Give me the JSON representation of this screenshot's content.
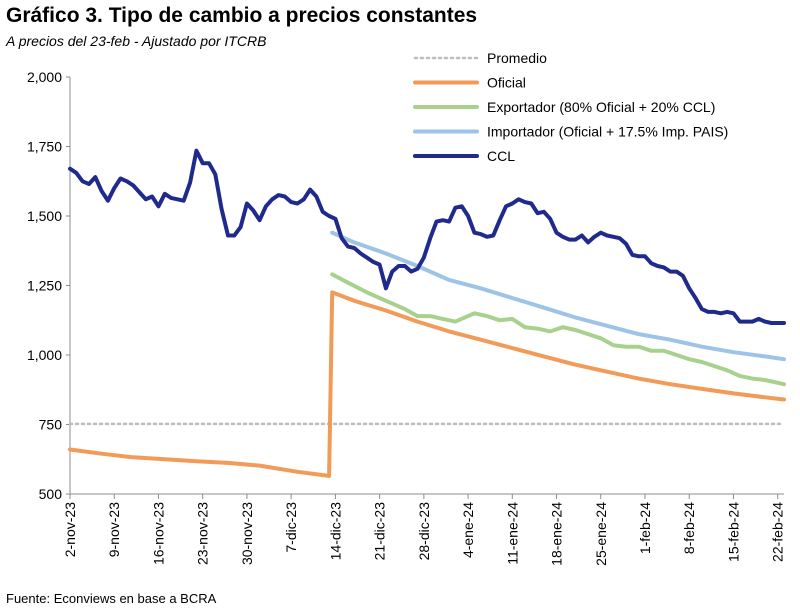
{
  "title": "Gráfico 3. Tipo de cambio a precios constantes",
  "subtitle": "A precios del 23-feb - Ajustado por ITCRB",
  "source": "Fuente: Econviews en base a BCRA",
  "chart_data": {
    "type": "line",
    "title": "Gráfico 3. Tipo de cambio a precios constantes",
    "subtitle": "A precios del 23-feb - Ajustado por ITCRB",
    "xlabel": "",
    "ylabel": "",
    "ylim": [
      500,
      2000
    ],
    "yticks": [
      500,
      750,
      1000,
      1250,
      1500,
      1750,
      2000
    ],
    "ytick_labels": [
      "500",
      "750",
      "1,000",
      "1,250",
      "1,500",
      "1,750",
      "2,000"
    ],
    "x_range_days": [
      0,
      113
    ],
    "xticks": [
      0,
      7,
      14,
      21,
      28,
      35,
      42,
      49,
      56,
      63,
      70,
      77,
      84,
      91,
      98,
      105,
      112
    ],
    "xtick_labels": [
      "2-nov-23",
      "9-nov-23",
      "16-nov-23",
      "23-nov-23",
      "30-nov-23",
      "7-dic-23",
      "14-dic-23",
      "21-dic-23",
      "28-dic-23",
      "4-ene-24",
      "11-ene-24",
      "18-ene-24",
      "25-ene-24",
      "1-feb-24",
      "8-feb-24",
      "15-feb-24",
      "22-feb-24"
    ],
    "x_unit": "days since 2-nov-23",
    "legend_position": "top-right",
    "grid": false,
    "series": [
      {
        "name": "Promedio",
        "color": "#bdbdbd",
        "style": "dotted",
        "x": [
          0,
          113
        ],
        "y": [
          752,
          752
        ]
      },
      {
        "name": "Oficial",
        "color": "#f29a57",
        "style": "solid",
        "x": [
          0,
          5,
          10,
          15,
          20,
          25,
          30,
          36,
          41,
          41.5,
          45,
          50,
          55,
          60,
          65,
          70,
          75,
          80,
          85,
          90,
          95,
          100,
          105,
          110,
          113
        ],
        "y": [
          660,
          645,
          632,
          625,
          618,
          612,
          602,
          580,
          565,
          1225,
          1195,
          1160,
          1120,
          1085,
          1055,
          1025,
          995,
          965,
          940,
          915,
          895,
          878,
          862,
          848,
          840
        ]
      },
      {
        "name": "Exportador (80% Oficial + 20% CCL)",
        "color": "#a9d18e",
        "style": "solid",
        "x": [
          41.5,
          44,
          47,
          50,
          53,
          55,
          57,
          59,
          61,
          63,
          64,
          66,
          68,
          70,
          72,
          74,
          76,
          78,
          80,
          82,
          84,
          86,
          88,
          90,
          92,
          94,
          96,
          98,
          100,
          102,
          104,
          106,
          108,
          110,
          113
        ],
        "y": [
          1290,
          1260,
          1225,
          1195,
          1165,
          1140,
          1140,
          1130,
          1120,
          1140,
          1150,
          1140,
          1125,
          1130,
          1100,
          1095,
          1085,
          1100,
          1090,
          1075,
          1060,
          1035,
          1030,
          1030,
          1015,
          1015,
          1000,
          985,
          975,
          960,
          945,
          925,
          915,
          910,
          895
        ]
      },
      {
        "name": "Importador (Oficial + 17.5% Imp. PAIS)",
        "color": "#9dc3e6",
        "style": "solid",
        "x": [
          41.5,
          45,
          50,
          55,
          60,
          65,
          70,
          75,
          80,
          85,
          90,
          95,
          100,
          105,
          110,
          113
        ],
        "y": [
          1440,
          1405,
          1365,
          1320,
          1270,
          1240,
          1205,
          1170,
          1135,
          1105,
          1075,
          1055,
          1030,
          1010,
          995,
          985
        ]
      },
      {
        "name": "CCL",
        "color": "#1f2a8c",
        "style": "solid",
        "x": [
          0,
          1,
          2,
          3,
          4,
          5,
          6,
          7,
          8,
          9,
          10,
          11,
          12,
          13,
          14,
          15,
          16,
          17,
          18,
          19,
          20,
          21,
          22,
          23,
          24,
          25,
          26,
          27,
          28,
          29,
          30,
          31,
          32,
          33,
          34,
          35,
          36,
          37,
          38,
          39,
          40,
          41,
          42,
          43,
          44,
          45,
          46,
          47,
          48,
          49,
          50,
          51,
          52,
          53,
          54,
          55,
          56,
          57,
          58,
          59,
          60,
          61,
          62,
          63,
          64,
          65,
          66,
          67,
          68,
          69,
          70,
          71,
          72,
          73,
          74,
          75,
          76,
          77,
          78,
          79,
          80,
          81,
          82,
          83,
          84,
          85,
          86,
          87,
          88,
          89,
          90,
          91,
          92,
          93,
          94,
          95,
          96,
          97,
          98,
          99,
          100,
          101,
          102,
          103,
          104,
          105,
          106,
          107,
          108,
          109,
          110,
          111,
          112,
          113
        ],
        "y": [
          1670,
          1655,
          1625,
          1615,
          1640,
          1590,
          1555,
          1600,
          1635,
          1625,
          1610,
          1585,
          1560,
          1570,
          1535,
          1580,
          1565,
          1560,
          1555,
          1620,
          1735,
          1690,
          1690,
          1650,
          1525,
          1430,
          1430,
          1460,
          1545,
          1520,
          1485,
          1535,
          1560,
          1575,
          1570,
          1550,
          1545,
          1560,
          1595,
          1570,
          1515,
          1500,
          1490,
          1420,
          1390,
          1385,
          1365,
          1350,
          1335,
          1325,
          1240,
          1300,
          1320,
          1320,
          1300,
          1310,
          1350,
          1420,
          1480,
          1485,
          1480,
          1530,
          1535,
          1500,
          1440,
          1435,
          1425,
          1430,
          1485,
          1535,
          1545,
          1560,
          1550,
          1545,
          1510,
          1515,
          1490,
          1440,
          1425,
          1415,
          1415,
          1430,
          1405,
          1425,
          1440,
          1430,
          1425,
          1420,
          1400,
          1360,
          1355,
          1355,
          1330,
          1320,
          1315,
          1300,
          1300,
          1285,
          1240,
          1205,
          1165,
          1155,
          1155,
          1150,
          1155,
          1150,
          1120,
          1120,
          1120,
          1130,
          1120,
          1115,
          1115,
          1115
        ]
      }
    ]
  }
}
